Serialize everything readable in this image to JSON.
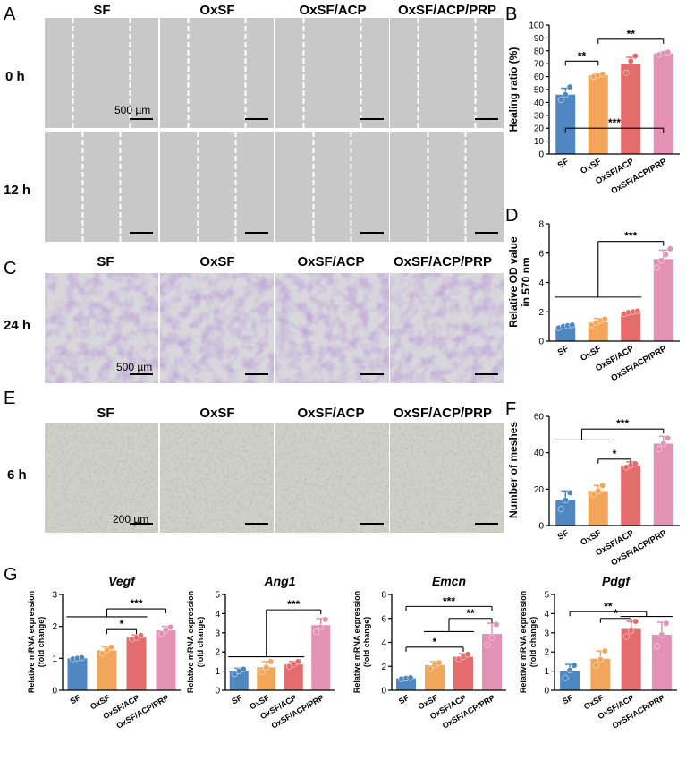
{
  "panel_letters": {
    "A": "A",
    "B": "B",
    "C": "C",
    "D": "D",
    "E": "E",
    "F": "F",
    "G": "G"
  },
  "image_rows": {
    "A": {
      "headers": [
        "SF",
        "OxSF",
        "OxSF/ACP",
        "OxSF/ACP/PRP"
      ],
      "rows": [
        "0 h",
        "12 h"
      ],
      "scale": "500 µm",
      "colors": {
        "bg": "#c9c9c9",
        "line": "#ffffff"
      }
    },
    "C": {
      "headers": [
        "SF",
        "OxSF",
        "OxSF/ACP",
        "OxSF/ACP/PRP"
      ],
      "rows": [
        "24 h"
      ],
      "scale": "500 µm",
      "colors": {
        "bg": "#d8d8dc",
        "cell": "#7a4fb3"
      }
    },
    "E": {
      "headers": [
        "SF",
        "OxSF",
        "OxSF/ACP",
        "OxSF/ACP/PRP"
      ],
      "rows": [
        "6 h"
      ],
      "scale": "200 µm",
      "colors": {
        "bg": "#cfd0c8",
        "cell": "#8a8a80"
      }
    }
  },
  "colors": {
    "SF": "#4f87c3",
    "OxSF": "#f2a65a",
    "OxSF/ACP": "#e46c6c",
    "OxSF/ACP/PRP": "#e391b4"
  },
  "chart_data": [
    {
      "id": "B",
      "type": "bar",
      "categories": [
        "SF",
        "OxSF",
        "OxSF/ACP",
        "OxSF/ACP/PRP"
      ],
      "values": [
        46,
        61,
        70,
        78
      ],
      "errors": [
        5,
        1.5,
        5,
        1
      ],
      "points": [
        [
          42,
          46,
          52
        ],
        [
          60,
          61,
          62
        ],
        [
          63,
          72,
          76
        ],
        [
          77,
          78,
          79
        ]
      ],
      "ylabel": "Healing ratio (%)",
      "ylim": [
        0,
        100
      ],
      "yticks": [
        0,
        10,
        20,
        30,
        40,
        50,
        60,
        70,
        80,
        90,
        100
      ],
      "sig": [
        "***",
        "**",
        "**"
      ]
    },
    {
      "id": "D",
      "type": "bar",
      "categories": [
        "SF",
        "OxSF",
        "OxSF/ACP",
        "OxSF/ACP/PRP"
      ],
      "values": [
        1.0,
        1.3,
        1.95,
        5.6
      ],
      "errors": [
        0.1,
        0.25,
        0.1,
        0.6
      ],
      "points": [
        [
          0.9,
          1.0,
          1.05,
          1.1
        ],
        [
          1.1,
          1.25,
          1.4,
          1.5
        ],
        [
          1.85,
          1.95,
          2.0,
          2.05
        ],
        [
          5.0,
          5.5,
          5.9,
          6.3
        ]
      ],
      "ylabel": "Relative OD value in 570 nm",
      "ylim": [
        0,
        8
      ],
      "yticks": [
        0,
        2,
        4,
        6,
        8
      ],
      "sig": [
        "***"
      ]
    },
    {
      "id": "F",
      "type": "bar",
      "categories": [
        "SF",
        "OxSF",
        "OxSF/ACP",
        "OxSF/ACP/PRP"
      ],
      "values": [
        14,
        19,
        33,
        45
      ],
      "errors": [
        5,
        3,
        2,
        4
      ],
      "points": [
        [
          9,
          14,
          18
        ],
        [
          17,
          19,
          22
        ],
        [
          32,
          33,
          34
        ],
        [
          42,
          45,
          48
        ]
      ],
      "ylabel": "Number of meshes",
      "ylim": [
        0,
        60
      ],
      "yticks": [
        0,
        20,
        40,
        60
      ],
      "sig": [
        "***",
        "*"
      ]
    },
    {
      "id": "G1",
      "type": "bar",
      "title": "Vegf",
      "categories": [
        "SF",
        "OxSF",
        "OxSF/ACP",
        "OxSF/ACP/PRP"
      ],
      "values": [
        1.0,
        1.25,
        1.65,
        1.88
      ],
      "errors": [
        0.02,
        0.1,
        0.08,
        0.12
      ],
      "points": [
        [
          0.98,
          1.0,
          1.02
        ],
        [
          1.15,
          1.25,
          1.35
        ],
        [
          1.6,
          1.65,
          1.72
        ],
        [
          1.78,
          1.88,
          1.98
        ]
      ],
      "ylabel": "Relative mRNA expression (fold change)",
      "ylim": [
        0,
        3
      ],
      "yticks": [
        0,
        1,
        2,
        3
      ],
      "sig": [
        "***",
        "*"
      ]
    },
    {
      "id": "G2",
      "type": "bar",
      "title": "Ang1",
      "categories": [
        "SF",
        "OxSF",
        "OxSF/ACP",
        "OxSF/ACP/PRP"
      ],
      "values": [
        1.0,
        1.2,
        1.35,
        3.4
      ],
      "errors": [
        0.15,
        0.3,
        0.15,
        0.35
      ],
      "points": [
        [
          0.85,
          1.0,
          1.1
        ],
        [
          0.95,
          1.2,
          1.5
        ],
        [
          1.25,
          1.35,
          1.5
        ],
        [
          3.05,
          3.3,
          3.7
        ]
      ],
      "ylabel": "Relative mRNA expression (fold change)",
      "ylim": [
        0,
        5
      ],
      "yticks": [
        0,
        1,
        2,
        3,
        4,
        5
      ],
      "sig": [
        "***"
      ]
    },
    {
      "id": "G3",
      "type": "bar",
      "title": "Emcn",
      "categories": [
        "SF",
        "OxSF",
        "OxSF/ACP",
        "OxSF/ACP/PRP"
      ],
      "values": [
        1.0,
        2.1,
        2.8,
        4.7
      ],
      "errors": [
        0.05,
        0.3,
        0.25,
        0.9
      ],
      "points": [
        [
          0.95,
          1.0,
          1.05
        ],
        [
          1.8,
          2.1,
          2.3
        ],
        [
          2.6,
          2.8,
          3.0
        ],
        [
          3.8,
          4.4,
          5.5
        ]
      ],
      "ylabel": "Relative mRNA expression (fold change)",
      "ylim": [
        0,
        8
      ],
      "yticks": [
        0,
        2,
        4,
        6,
        8
      ],
      "sig": [
        "***",
        "**",
        "*"
      ]
    },
    {
      "id": "G4",
      "type": "bar",
      "title": "Pdgf",
      "categories": [
        "SF",
        "OxSF",
        "OxSF/ACP",
        "OxSF/ACP/PRP"
      ],
      "values": [
        1.0,
        1.65,
        3.2,
        2.9
      ],
      "errors": [
        0.35,
        0.4,
        0.4,
        0.65
      ],
      "points": [
        [
          0.65,
          1.05,
          1.3
        ],
        [
          1.3,
          1.6,
          2.05
        ],
        [
          2.8,
          3.1,
          3.6
        ],
        [
          2.3,
          2.9,
          3.5
        ]
      ],
      "ylabel": "Relative mRNA expression (fold change)",
      "ylim": [
        0,
        5
      ],
      "yticks": [
        0,
        1,
        2,
        3,
        4,
        5
      ],
      "sig": [
        "**",
        "*"
      ]
    }
  ]
}
